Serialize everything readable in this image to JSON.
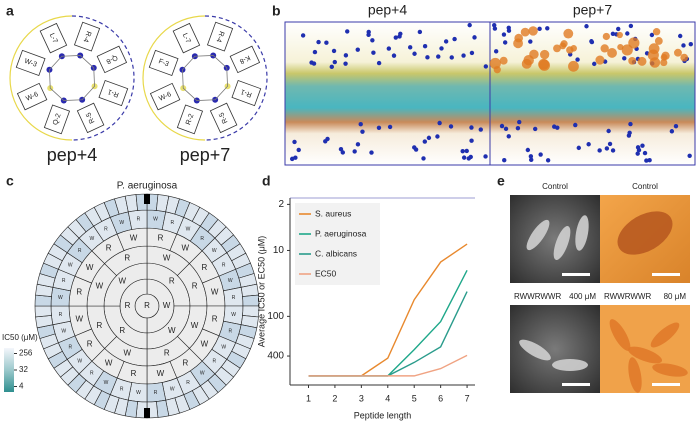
{
  "panel_labels": [
    "a",
    "b",
    "c",
    "d",
    "e"
  ],
  "helical_wheels": [
    {
      "title": "pep+4",
      "residues": [
        "R-4",
        "Q-8",
        "R-1",
        "R-5",
        "Q-2",
        "W-6",
        "W-3",
        "L-7"
      ]
    },
    {
      "title": "pep+7",
      "residues": [
        "R-4",
        "K-8",
        "R-1",
        "R-5",
        "R-2",
        "W-6",
        "F-3",
        "L-7"
      ]
    }
  ],
  "simulations": [
    {
      "title": "pep+4"
    },
    {
      "title": "pep+7"
    }
  ],
  "heatmap": {
    "title": "P. aeruginosa",
    "colorbar_title": "IC50 (μM)",
    "colorbar_lim": [
      2,
      512
    ],
    "colorbar_ticks": [
      256,
      32,
      4
    ],
    "rings": [
      [
        "R"
      ],
      [
        "W",
        "R"
      ],
      [
        "R",
        "W",
        "R",
        "W"
      ],
      [
        "W",
        "R",
        "W",
        "R",
        "W",
        "R",
        "W",
        "R"
      ],
      [
        "R",
        "W",
        "R",
        "W",
        "R",
        "W",
        "R",
        "W",
        "R",
        "W",
        "R",
        "W",
        "R",
        "W",
        "R",
        "W"
      ],
      [
        "W",
        "R",
        "W",
        "R",
        "W",
        "R",
        "W",
        "R",
        "W",
        "R",
        "W",
        "R",
        "W",
        "R",
        "W",
        "R",
        "W",
        "R",
        "W",
        "R",
        "W",
        "R",
        "W",
        "R",
        "W",
        "R",
        "W",
        "R",
        "W",
        "R",
        "W",
        "R"
      ]
    ]
  },
  "chart_data": {
    "type": "line",
    "x_label": "Peptide length",
    "y_label": "Average IC50 or EC50 (μM)",
    "x": [
      1,
      2,
      3,
      4,
      5,
      6,
      7
    ],
    "xlim": [
      0.3,
      7.3
    ],
    "xticks": [
      1,
      2,
      3,
      4,
      5,
      6,
      7
    ],
    "ylim": [
      1.6,
      1100
    ],
    "yticks": [
      2,
      10,
      100,
      400
    ],
    "y_log": true,
    "y_inverted": true,
    "legend": "top-left",
    "series": [
      {
        "name": "S. aureus",
        "color": "#e8892e",
        "values": [
          800,
          800,
          800,
          430,
          56,
          15,
          8
        ]
      },
      {
        "name": "P. aeruginosa",
        "color": "#1fa88a",
        "values": [
          800,
          800,
          800,
          800,
          320,
          120,
          20
        ]
      },
      {
        "name": "C. albicans",
        "color": "#2b9c8c",
        "values": [
          800,
          800,
          800,
          800,
          500,
          290,
          42
        ]
      },
      {
        "name": "EC50",
        "color": "#f0a383",
        "values": [
          800,
          800,
          800,
          800,
          800,
          620,
          390
        ]
      }
    ]
  },
  "micrographs": [
    {
      "label": "Control"
    },
    {
      "label": "Control"
    },
    {
      "peptide": "RWWRWWR",
      "concentration": "400 μM"
    },
    {
      "peptide": "RWWRWWR",
      "concentration": "80 μM"
    }
  ]
}
